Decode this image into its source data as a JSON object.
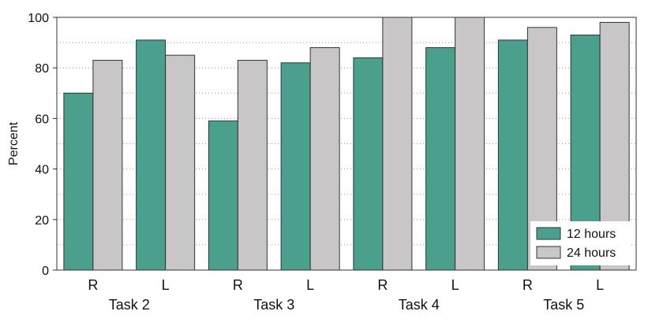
{
  "chart_data": {
    "type": "bar",
    "categories": [
      "R",
      "L",
      "R",
      "L",
      "R",
      "L",
      "R",
      "L"
    ],
    "groups": [
      "Task 2",
      "Task 3",
      "Task 4",
      "Task 5"
    ],
    "series": [
      {
        "name": "12 hours",
        "color": "#4aa08c",
        "values": [
          70,
          91,
          59,
          82,
          84,
          88,
          91,
          93
        ]
      },
      {
        "name": "24 hours",
        "color": "#c8c6c6",
        "values": [
          83,
          85,
          83,
          88,
          100,
          100,
          96,
          98
        ]
      }
    ],
    "xlabel": "",
    "ylabel": "Percent",
    "ylim": [
      0,
      100
    ],
    "yticks": [
      0,
      20,
      40,
      60,
      80,
      100
    ],
    "grid": true,
    "legend_position": "bottom-right"
  }
}
